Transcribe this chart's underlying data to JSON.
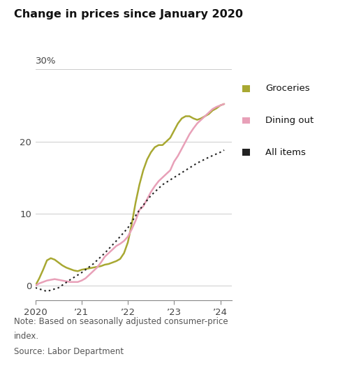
{
  "title": "Change in prices since January 2020",
  "yticks": [
    0,
    10,
    20
  ],
  "ytick_labels": [
    "0",
    "10",
    "20"
  ],
  "ylim": [
    -2,
    30
  ],
  "xlim": [
    2020.0,
    2024.25
  ],
  "xtick_positions": [
    2020.0,
    2021.0,
    2022.0,
    2023.0,
    2024.0
  ],
  "xtick_labels": [
    "2020",
    "’21",
    "’22",
    "’23",
    "’24"
  ],
  "note_line1": "Note: Based on seasonally adjusted consumer-price",
  "note_line2": "index.",
  "note_line3": "Source: Labor Department",
  "groceries_color": "#a8a832",
  "dining_color": "#e8a0b8",
  "allitems_color": "#222222",
  "background_color": "#ffffff",
  "legend_labels": [
    "Groceries",
    "Dining out",
    "All items"
  ],
  "groceries_x": [
    2020.0,
    2020.083,
    2020.167,
    2020.25,
    2020.333,
    2020.417,
    2020.5,
    2020.583,
    2020.667,
    2020.75,
    2020.833,
    2020.917,
    2021.0,
    2021.083,
    2021.167,
    2021.25,
    2021.333,
    2021.417,
    2021.5,
    2021.583,
    2021.667,
    2021.75,
    2021.833,
    2021.917,
    2022.0,
    2022.083,
    2022.167,
    2022.25,
    2022.333,
    2022.417,
    2022.5,
    2022.583,
    2022.667,
    2022.75,
    2022.833,
    2022.917,
    2023.0,
    2023.083,
    2023.167,
    2023.25,
    2023.333,
    2023.417,
    2023.5,
    2023.583,
    2023.667,
    2023.75,
    2023.833,
    2023.917,
    2024.0,
    2024.083
  ],
  "groceries_y": [
    0.0,
    1.0,
    2.2,
    3.5,
    3.8,
    3.6,
    3.2,
    2.8,
    2.5,
    2.3,
    2.1,
    2.0,
    2.2,
    2.3,
    2.4,
    2.5,
    2.6,
    2.7,
    2.9,
    3.0,
    3.2,
    3.4,
    3.7,
    4.5,
    6.0,
    8.5,
    11.5,
    14.0,
    16.0,
    17.5,
    18.5,
    19.2,
    19.5,
    19.5,
    20.0,
    20.5,
    21.5,
    22.5,
    23.2,
    23.5,
    23.5,
    23.2,
    23.0,
    23.2,
    23.5,
    23.8,
    24.3,
    24.6,
    25.0,
    25.2
  ],
  "dining_x": [
    2020.0,
    2020.083,
    2020.167,
    2020.25,
    2020.333,
    2020.417,
    2020.5,
    2020.583,
    2020.667,
    2020.75,
    2020.833,
    2020.917,
    2021.0,
    2021.083,
    2021.167,
    2021.25,
    2021.333,
    2021.417,
    2021.5,
    2021.583,
    2021.667,
    2021.75,
    2021.833,
    2021.917,
    2022.0,
    2022.083,
    2022.167,
    2022.25,
    2022.333,
    2022.417,
    2022.5,
    2022.583,
    2022.667,
    2022.75,
    2022.833,
    2022.917,
    2023.0,
    2023.083,
    2023.167,
    2023.25,
    2023.333,
    2023.417,
    2023.5,
    2023.583,
    2023.667,
    2023.75,
    2023.833,
    2023.917,
    2024.0,
    2024.083
  ],
  "dining_y": [
    0.0,
    0.3,
    0.5,
    0.7,
    0.8,
    0.9,
    0.8,
    0.7,
    0.6,
    0.5,
    0.5,
    0.5,
    0.7,
    1.0,
    1.5,
    2.0,
    2.5,
    3.2,
    4.0,
    4.5,
    5.0,
    5.5,
    5.8,
    6.2,
    6.8,
    7.8,
    9.0,
    10.5,
    11.0,
    12.0,
    13.0,
    13.8,
    14.5,
    15.0,
    15.5,
    16.0,
    17.2,
    18.0,
    19.0,
    20.0,
    21.0,
    21.8,
    22.5,
    23.0,
    23.5,
    24.0,
    24.5,
    24.8,
    25.0,
    25.2
  ],
  "allitems_x": [
    2020.0,
    2020.25,
    2020.5,
    2020.75,
    2021.0,
    2021.25,
    2021.5,
    2021.75,
    2022.0,
    2022.25,
    2022.5,
    2022.75,
    2023.0,
    2023.25,
    2023.5,
    2023.75,
    2024.0,
    2024.083
  ],
  "allitems_y": [
    -0.3,
    -0.8,
    -0.3,
    0.8,
    1.8,
    3.0,
    4.5,
    6.2,
    8.0,
    10.5,
    12.5,
    14.0,
    15.0,
    16.0,
    17.0,
    17.8,
    18.5,
    18.8
  ]
}
